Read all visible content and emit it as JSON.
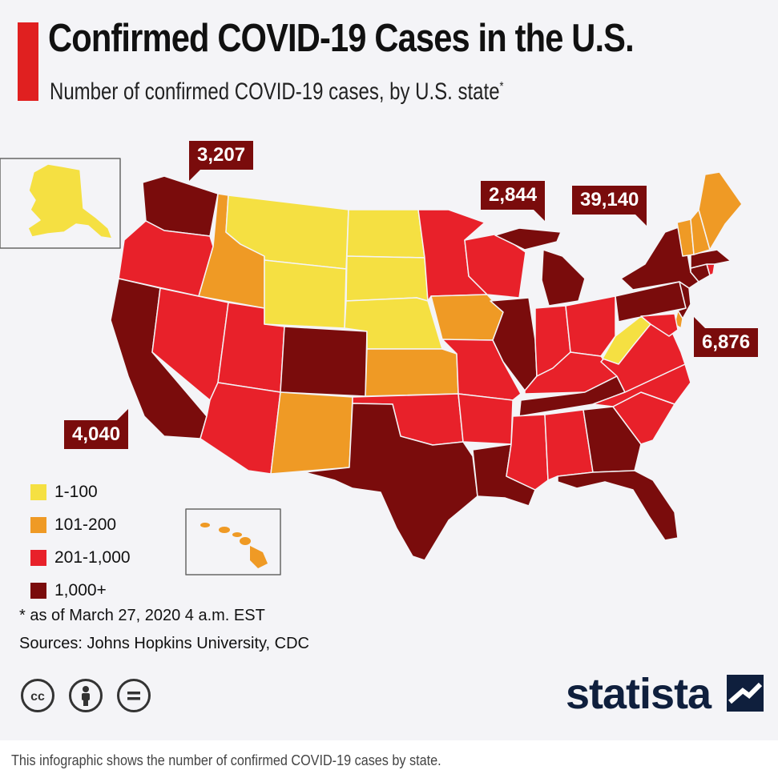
{
  "title": "Confirmed COVID-19 Cases in the U.S.",
  "subtitle": "Number of confirmed COVID-19 cases, by U.S. state",
  "subtitle_mark": "*",
  "colors": {
    "c1": "#f5e042",
    "c2": "#ef9a25",
    "c3": "#e8212a",
    "c4": "#7a0c0c",
    "accent": "#e02020",
    "brand": "#0f1f3d"
  },
  "legend": [
    {
      "label": "1-100",
      "color": "#f5e042"
    },
    {
      "label": "101-200",
      "color": "#ef9a25"
    },
    {
      "label": "201-1,000",
      "color": "#e8212a"
    },
    {
      "label": "1,000+",
      "color": "#7a0c0c"
    }
  ],
  "callouts": {
    "washington": "3,207",
    "california": "4,040",
    "michigan": "2,844",
    "new_york": "39,140",
    "new_jersey": "6,876"
  },
  "footnote": "* as of March 27, 2020 4 a.m. EST",
  "sources": "Sources: Johns Hopkins University, CDC",
  "license_icons": [
    "cc-icon",
    "by-icon",
    "nd-icon"
  ],
  "brand": "statista",
  "caption": "This infographic shows the number of confirmed COVID-19 cases by state."
}
